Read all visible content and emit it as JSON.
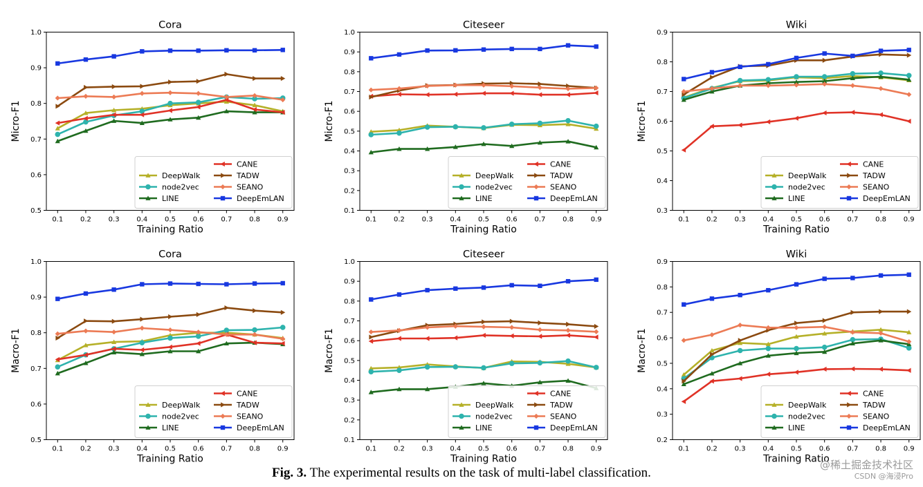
{
  "caption": {
    "label": "Fig. 3.",
    "text": "The experimental results on the task of multi-label classification."
  },
  "watermark": {
    "line1": "@稀土掘金技术社区",
    "line2": "CSDN @海浸Pro"
  },
  "legend_order": [
    "DeepWalk",
    "node2vec",
    "LINE",
    "CANE",
    "TADW",
    "SEANO",
    "DeepEmLAN"
  ],
  "method_colors": {
    "DeepWalk": "#b5b028",
    "node2vec": "#2eb3ad",
    "LINE": "#1f6b1f",
    "CANE": "#e03226",
    "TADW": "#8b4a10",
    "SEANO": "#ec7b55",
    "DeepEmLAN": "#1838e0"
  },
  "method_markers": {
    "DeepWalk": "triangle-up",
    "node2vec": "circle",
    "LINE": "triangle-up",
    "CANE": "triangle-left",
    "TADW": "triangle-right",
    "SEANO": "diamond",
    "DeepEmLAN": "square"
  },
  "chart_data": [
    {
      "type": "line",
      "title": "Cora",
      "xlabel": "Training Ratio",
      "ylabel": "Micro-F1",
      "x": [
        0.1,
        0.2,
        0.3,
        0.4,
        0.5,
        0.6,
        0.7,
        0.8,
        0.9
      ],
      "xticks": [
        "0.1",
        "0.2",
        "0.3",
        "0.4",
        "0.5",
        "0.6",
        "0.7",
        "0.8",
        "0.9"
      ],
      "ylim": [
        0.5,
        1.0
      ],
      "yticks": [
        "0.5",
        "0.6",
        "0.7",
        "0.8",
        "0.9",
        "1.0"
      ],
      "series": [
        {
          "name": "DeepWalk",
          "values": [
            0.73,
            0.773,
            0.781,
            0.785,
            0.795,
            0.8,
            0.805,
            0.795,
            0.778
          ]
        },
        {
          "name": "node2vec",
          "values": [
            0.713,
            0.748,
            0.766,
            0.778,
            0.8,
            0.803,
            0.818,
            0.813,
            0.815
          ]
        },
        {
          "name": "LINE",
          "values": [
            0.694,
            0.723,
            0.751,
            0.745,
            0.755,
            0.76,
            0.778,
            0.775,
            0.775
          ]
        },
        {
          "name": "CANE",
          "values": [
            0.745,
            0.758,
            0.768,
            0.768,
            0.78,
            0.79,
            0.81,
            0.783,
            0.775
          ]
        },
        {
          "name": "TADW",
          "values": [
            0.792,
            0.845,
            0.847,
            0.848,
            0.86,
            0.862,
            0.882,
            0.87,
            0.87
          ]
        },
        {
          "name": "SEANO",
          "values": [
            0.815,
            0.82,
            0.818,
            0.828,
            0.83,
            0.828,
            0.818,
            0.822,
            0.81
          ]
        },
        {
          "name": "DeepEmLAN",
          "values": [
            0.912,
            0.923,
            0.932,
            0.946,
            0.948,
            0.948,
            0.949,
            0.949,
            0.95
          ]
        }
      ]
    },
    {
      "type": "line",
      "title": "Citeseer",
      "xlabel": "Training Ratio",
      "ylabel": "Micro-F1",
      "x": [
        0.1,
        0.2,
        0.3,
        0.4,
        0.5,
        0.6,
        0.7,
        0.8,
        0.9
      ],
      "xticks": [
        "0.1",
        "0.2",
        "0.3",
        "0.4",
        "0.5",
        "0.6",
        "0.7",
        "0.8",
        "0.9"
      ],
      "ylim": [
        0.1,
        1.0
      ],
      "yticks": [
        "0.1",
        "0.2",
        "0.3",
        "0.4",
        "0.5",
        "0.6",
        "0.7",
        "0.8",
        "0.9",
        "1.0"
      ],
      "series": [
        {
          "name": "DeepWalk",
          "values": [
            0.497,
            0.505,
            0.528,
            0.522,
            0.515,
            0.532,
            0.53,
            0.535,
            0.512
          ]
        },
        {
          "name": "node2vec",
          "values": [
            0.482,
            0.49,
            0.52,
            0.522,
            0.517,
            0.535,
            0.54,
            0.553,
            0.525
          ]
        },
        {
          "name": "LINE",
          "values": [
            0.393,
            0.41,
            0.41,
            0.42,
            0.435,
            0.425,
            0.442,
            0.448,
            0.418
          ]
        },
        {
          "name": "CANE",
          "values": [
            0.676,
            0.686,
            0.684,
            0.686,
            0.691,
            0.691,
            0.684,
            0.684,
            0.693
          ]
        },
        {
          "name": "TADW",
          "values": [
            0.672,
            0.705,
            0.73,
            0.733,
            0.74,
            0.742,
            0.738,
            0.728,
            0.718
          ]
        },
        {
          "name": "SEANO",
          "values": [
            0.708,
            0.715,
            0.728,
            0.732,
            0.732,
            0.727,
            0.72,
            0.714,
            0.718
          ]
        },
        {
          "name": "DeepEmLAN",
          "values": [
            0.868,
            0.887,
            0.907,
            0.908,
            0.912,
            0.915,
            0.915,
            0.933,
            0.927
          ]
        }
      ]
    },
    {
      "type": "line",
      "title": "Wiki",
      "xlabel": "Training Ratio",
      "ylabel": "Micro-F1",
      "x": [
        0.1,
        0.2,
        0.3,
        0.4,
        0.5,
        0.6,
        0.7,
        0.8,
        0.9
      ],
      "xticks": [
        "0.1",
        "0.2",
        "0.3",
        "0.4",
        "0.5",
        "0.6",
        "0.7",
        "0.8",
        "0.9"
      ],
      "ylim": [
        0.3,
        0.9
      ],
      "yticks": [
        "0.3",
        "0.4",
        "0.5",
        "0.6",
        "0.7",
        "0.8",
        "0.9"
      ],
      "series": [
        {
          "name": "DeepWalk",
          "values": [
            0.68,
            0.712,
            0.735,
            0.737,
            0.748,
            0.745,
            0.752,
            0.748,
            0.738
          ]
        },
        {
          "name": "node2vec",
          "values": [
            0.678,
            0.71,
            0.737,
            0.74,
            0.75,
            0.75,
            0.76,
            0.762,
            0.754
          ]
        },
        {
          "name": "LINE",
          "values": [
            0.672,
            0.7,
            0.72,
            0.728,
            0.732,
            0.735,
            0.745,
            0.75,
            0.74
          ]
        },
        {
          "name": "CANE",
          "values": [
            0.503,
            0.583,
            0.587,
            0.598,
            0.61,
            0.628,
            0.63,
            0.622,
            0.6
          ]
        },
        {
          "name": "TADW",
          "values": [
            0.69,
            0.748,
            0.785,
            0.787,
            0.805,
            0.805,
            0.818,
            0.825,
            0.822
          ]
        },
        {
          "name": "SEANO",
          "values": [
            0.7,
            0.71,
            0.72,
            0.72,
            0.722,
            0.725,
            0.72,
            0.71,
            0.69
          ]
        },
        {
          "name": "DeepEmLAN",
          "values": [
            0.742,
            0.765,
            0.783,
            0.792,
            0.813,
            0.828,
            0.82,
            0.837,
            0.84
          ]
        }
      ]
    },
    {
      "type": "line",
      "title": "Cora",
      "xlabel": "Training Ratio",
      "ylabel": "Macro-F1",
      "x": [
        0.1,
        0.2,
        0.3,
        0.4,
        0.5,
        0.6,
        0.7,
        0.8,
        0.9
      ],
      "xticks": [
        "0.1",
        "0.2",
        "0.3",
        "0.4",
        "0.5",
        "0.6",
        "0.7",
        "0.8",
        "0.9"
      ],
      "ylim": [
        0.5,
        1.0
      ],
      "yticks": [
        "0.5",
        "0.6",
        "0.7",
        "0.8",
        "0.9",
        "1.0"
      ],
      "series": [
        {
          "name": "DeepWalk",
          "values": [
            0.723,
            0.765,
            0.774,
            0.776,
            0.793,
            0.8,
            0.8,
            0.795,
            0.785
          ]
        },
        {
          "name": "node2vec",
          "values": [
            0.704,
            0.738,
            0.755,
            0.772,
            0.785,
            0.79,
            0.807,
            0.808,
            0.815
          ]
        },
        {
          "name": "LINE",
          "values": [
            0.686,
            0.715,
            0.745,
            0.74,
            0.748,
            0.748,
            0.77,
            0.772,
            0.768
          ]
        },
        {
          "name": "CANE",
          "values": [
            0.725,
            0.738,
            0.755,
            0.752,
            0.76,
            0.77,
            0.795,
            0.772,
            0.77
          ]
        },
        {
          "name": "TADW",
          "values": [
            0.785,
            0.833,
            0.832,
            0.838,
            0.845,
            0.851,
            0.87,
            0.862,
            0.857
          ]
        },
        {
          "name": "SEANO",
          "values": [
            0.797,
            0.805,
            0.802,
            0.813,
            0.808,
            0.802,
            0.795,
            0.795,
            0.783
          ]
        },
        {
          "name": "DeepEmLAN",
          "values": [
            0.895,
            0.91,
            0.921,
            0.936,
            0.938,
            0.937,
            0.936,
            0.938,
            0.939
          ]
        }
      ]
    },
    {
      "type": "line",
      "title": "Citeseer",
      "xlabel": "Training Ratio",
      "ylabel": "Macro-F1",
      "x": [
        0.1,
        0.2,
        0.3,
        0.4,
        0.5,
        0.6,
        0.7,
        0.8,
        0.9
      ],
      "xticks": [
        "0.1",
        "0.2",
        "0.3",
        "0.4",
        "0.5",
        "0.6",
        "0.7",
        "0.8",
        "0.9"
      ],
      "ylim": [
        0.1,
        1.0
      ],
      "yticks": [
        "0.1",
        "0.2",
        "0.3",
        "0.4",
        "0.5",
        "0.6",
        "0.7",
        "0.8",
        "0.9",
        "1.0"
      ],
      "series": [
        {
          "name": "DeepWalk",
          "values": [
            0.46,
            0.465,
            0.48,
            0.47,
            0.462,
            0.495,
            0.493,
            0.483,
            0.465
          ]
        },
        {
          "name": "node2vec",
          "values": [
            0.443,
            0.45,
            0.467,
            0.468,
            0.463,
            0.485,
            0.488,
            0.497,
            0.465
          ]
        },
        {
          "name": "LINE",
          "values": [
            0.34,
            0.355,
            0.355,
            0.367,
            0.385,
            0.372,
            0.39,
            0.398,
            0.36
          ]
        },
        {
          "name": "CANE",
          "values": [
            0.597,
            0.611,
            0.611,
            0.614,
            0.627,
            0.624,
            0.622,
            0.627,
            0.618
          ]
        },
        {
          "name": "TADW",
          "values": [
            0.618,
            0.65,
            0.678,
            0.684,
            0.695,
            0.698,
            0.69,
            0.683,
            0.672
          ]
        },
        {
          "name": "SEANO",
          "values": [
            0.644,
            0.652,
            0.667,
            0.673,
            0.67,
            0.667,
            0.655,
            0.652,
            0.645
          ]
        },
        {
          "name": "DeepEmLAN",
          "values": [
            0.808,
            0.833,
            0.855,
            0.863,
            0.868,
            0.88,
            0.877,
            0.9,
            0.908
          ]
        }
      ]
    },
    {
      "type": "line",
      "title": "Wiki",
      "xlabel": "Training Ratio",
      "ylabel": "Macro-F1",
      "x": [
        0.1,
        0.2,
        0.3,
        0.4,
        0.5,
        0.6,
        0.7,
        0.8,
        0.9
      ],
      "xticks": [
        "0.1",
        "0.2",
        "0.3",
        "0.4",
        "0.5",
        "0.6",
        "0.7",
        "0.8",
        "0.9"
      ],
      "ylim": [
        0.2,
        0.9
      ],
      "yticks": [
        "0.2",
        "0.3",
        "0.4",
        "0.5",
        "0.6",
        "0.7",
        "0.8",
        "0.9"
      ],
      "series": [
        {
          "name": "DeepWalk",
          "values": [
            0.455,
            0.55,
            0.58,
            0.575,
            0.605,
            0.617,
            0.625,
            0.632,
            0.622
          ]
        },
        {
          "name": "node2vec",
          "values": [
            0.44,
            0.522,
            0.55,
            0.558,
            0.558,
            0.563,
            0.593,
            0.595,
            0.56
          ]
        },
        {
          "name": "LINE",
          "values": [
            0.418,
            0.46,
            0.5,
            0.53,
            0.54,
            0.545,
            0.578,
            0.59,
            0.575
          ]
        },
        {
          "name": "CANE",
          "values": [
            0.35,
            0.43,
            0.44,
            0.457,
            0.465,
            0.477,
            0.478,
            0.477,
            0.472
          ]
        },
        {
          "name": "TADW",
          "values": [
            0.43,
            0.535,
            0.59,
            0.63,
            0.658,
            0.668,
            0.7,
            0.703,
            0.703
          ]
        },
        {
          "name": "SEANO",
          "values": [
            0.59,
            0.612,
            0.65,
            0.64,
            0.64,
            0.643,
            0.622,
            0.618,
            0.585
          ]
        },
        {
          "name": "DeepEmLAN",
          "values": [
            0.731,
            0.754,
            0.768,
            0.787,
            0.81,
            0.832,
            0.835,
            0.845,
            0.848
          ]
        }
      ]
    }
  ]
}
